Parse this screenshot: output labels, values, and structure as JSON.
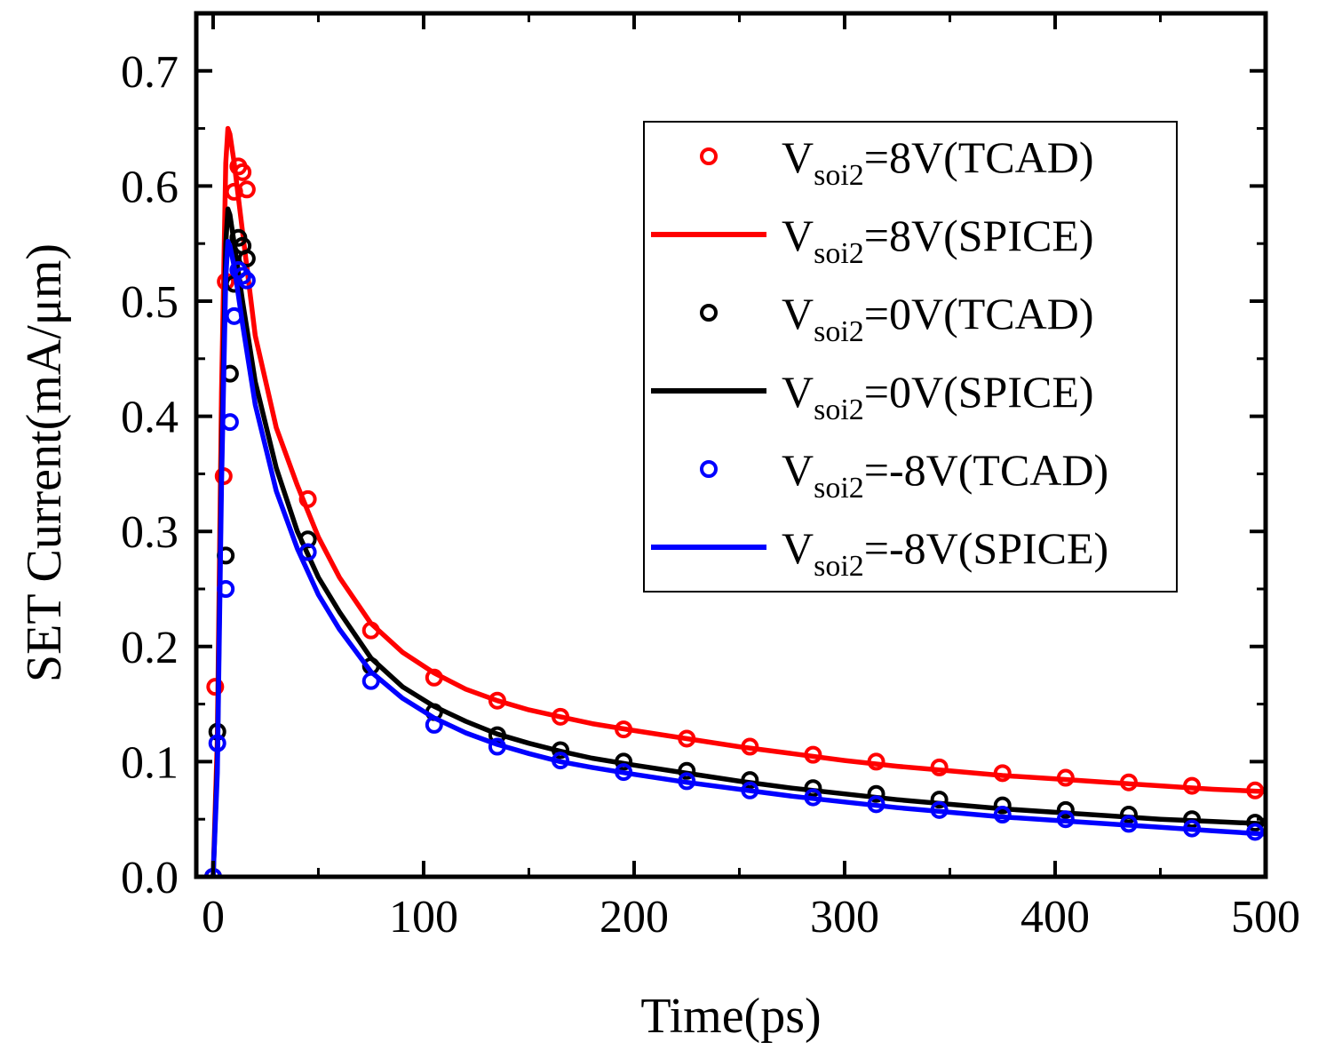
{
  "chart_data": {
    "type": "line",
    "title": "",
    "xlabel": "Time(ps)",
    "ylabel": "SET Current(mA/μm)",
    "xlim": [
      -8,
      500
    ],
    "ylim": [
      0,
      0.75
    ],
    "xticks": [
      0,
      100,
      200,
      300,
      400,
      500
    ],
    "xtick_labels": [
      "0",
      "100",
      "200",
      "300",
      "400",
      "500"
    ],
    "yticks": [
      0.0,
      0.1,
      0.2,
      0.3,
      0.4,
      0.5,
      0.6,
      0.7
    ],
    "ytick_labels": [
      "0.0",
      "0.1",
      "0.2",
      "0.3",
      "0.4",
      "0.5",
      "0.6",
      "0.7"
    ],
    "grid": false,
    "legend_position": "top-right",
    "series": [
      {
        "name": "Vsoi2=8V(TCAD)",
        "legend_main": "V",
        "legend_sub": "soi2",
        "legend_rest": "=8V(TCAD)",
        "kind": "scatter",
        "color": "#ff0000",
        "x": [
          0,
          1,
          5,
          6,
          10,
          12,
          14,
          16,
          45,
          75,
          105,
          135,
          165,
          195,
          225,
          255,
          285,
          315,
          345,
          375,
          405,
          435,
          465,
          495
        ],
        "y": [
          0,
          0.165,
          0.348,
          0.517,
          0.595,
          0.617,
          0.612,
          0.597,
          0.328,
          0.214,
          0.173,
          0.153,
          0.139,
          0.128,
          0.12,
          0.113,
          0.106,
          0.1,
          0.095,
          0.09,
          0.086,
          0.082,
          0.079,
          0.075
        ]
      },
      {
        "name": "Vsoi2=8V(SPICE)",
        "legend_main": "V",
        "legend_sub": "soi2",
        "legend_rest": "=8V(SPICE)",
        "kind": "line",
        "color": "#ff0000",
        "x": [
          0,
          2,
          4,
          6,
          7,
          8,
          10,
          14,
          20,
          30,
          40,
          50,
          60,
          75,
          90,
          105,
          120,
          135,
          150,
          165,
          180,
          200,
          225,
          250,
          275,
          300,
          325,
          350,
          375,
          400,
          425,
          450,
          475,
          500
        ],
        "y": [
          0,
          0.12,
          0.42,
          0.62,
          0.65,
          0.645,
          0.62,
          0.56,
          0.47,
          0.39,
          0.34,
          0.295,
          0.26,
          0.22,
          0.195,
          0.177,
          0.163,
          0.153,
          0.145,
          0.139,
          0.133,
          0.127,
          0.12,
          0.113,
          0.107,
          0.101,
          0.096,
          0.092,
          0.088,
          0.085,
          0.082,
          0.079,
          0.076,
          0.074
        ]
      },
      {
        "name": "Vsoi2=0V(TCAD)",
        "legend_main": "V",
        "legend_sub": "soi2",
        "legend_rest": "=0V(TCAD)",
        "kind": "scatter",
        "color": "#000000",
        "x": [
          0,
          2,
          6,
          8,
          10,
          12,
          14,
          16,
          45,
          75,
          105,
          135,
          165,
          195,
          225,
          255,
          285,
          315,
          345,
          375,
          405,
          435,
          465,
          495
        ],
        "y": [
          0,
          0.126,
          0.279,
          0.437,
          0.515,
          0.555,
          0.548,
          0.537,
          0.293,
          0.183,
          0.143,
          0.123,
          0.11,
          0.1,
          0.092,
          0.084,
          0.077,
          0.072,
          0.067,
          0.062,
          0.058,
          0.054,
          0.05,
          0.047
        ]
      },
      {
        "name": "Vsoi2=0V(SPICE)",
        "legend_main": "V",
        "legend_sub": "soi2",
        "legend_rest": "=0V(SPICE)",
        "kind": "line",
        "color": "#000000",
        "x": [
          0,
          2,
          4,
          6,
          7,
          8,
          10,
          14,
          20,
          30,
          40,
          50,
          60,
          75,
          90,
          105,
          120,
          135,
          150,
          165,
          180,
          200,
          225,
          250,
          275,
          300,
          325,
          350,
          375,
          400,
          425,
          450,
          475,
          500
        ],
        "y": [
          0,
          0.1,
          0.36,
          0.55,
          0.58,
          0.575,
          0.55,
          0.5,
          0.43,
          0.355,
          0.3,
          0.26,
          0.23,
          0.19,
          0.165,
          0.148,
          0.135,
          0.124,
          0.116,
          0.109,
          0.103,
          0.097,
          0.09,
          0.083,
          0.077,
          0.072,
          0.067,
          0.063,
          0.059,
          0.056,
          0.053,
          0.05,
          0.048,
          0.046
        ]
      },
      {
        "name": "Vsoi2=-8V(TCAD)",
        "legend_main": "V",
        "legend_sub": "soi2",
        "legend_rest": "=-8V(TCAD)",
        "kind": "scatter",
        "color": "#0000ff",
        "x": [
          0,
          2,
          6,
          8,
          10,
          12,
          14,
          16,
          45,
          75,
          105,
          135,
          165,
          195,
          225,
          255,
          285,
          315,
          345,
          375,
          405,
          435,
          465,
          495
        ],
        "y": [
          0,
          0.116,
          0.25,
          0.395,
          0.487,
          0.527,
          0.522,
          0.518,
          0.282,
          0.17,
          0.132,
          0.113,
          0.101,
          0.091,
          0.083,
          0.075,
          0.069,
          0.063,
          0.058,
          0.054,
          0.05,
          0.046,
          0.042,
          0.039
        ]
      },
      {
        "name": "Vsoi2=-8V(SPICE)",
        "legend_main": "V",
        "legend_sub": "soi2",
        "legend_rest": "=-8V(SPICE)",
        "kind": "line",
        "color": "#0000ff",
        "x": [
          0,
          2,
          4,
          6,
          7,
          8,
          10,
          14,
          20,
          30,
          40,
          50,
          60,
          75,
          90,
          105,
          120,
          135,
          150,
          165,
          180,
          200,
          225,
          250,
          275,
          300,
          325,
          350,
          375,
          400,
          425,
          450,
          475,
          500
        ],
        "y": [
          0,
          0.09,
          0.34,
          0.52,
          0.552,
          0.548,
          0.53,
          0.48,
          0.41,
          0.335,
          0.285,
          0.245,
          0.215,
          0.178,
          0.155,
          0.138,
          0.125,
          0.115,
          0.107,
          0.1,
          0.095,
          0.089,
          0.082,
          0.076,
          0.07,
          0.065,
          0.06,
          0.056,
          0.052,
          0.049,
          0.046,
          0.043,
          0.04,
          0.037
        ]
      }
    ]
  }
}
